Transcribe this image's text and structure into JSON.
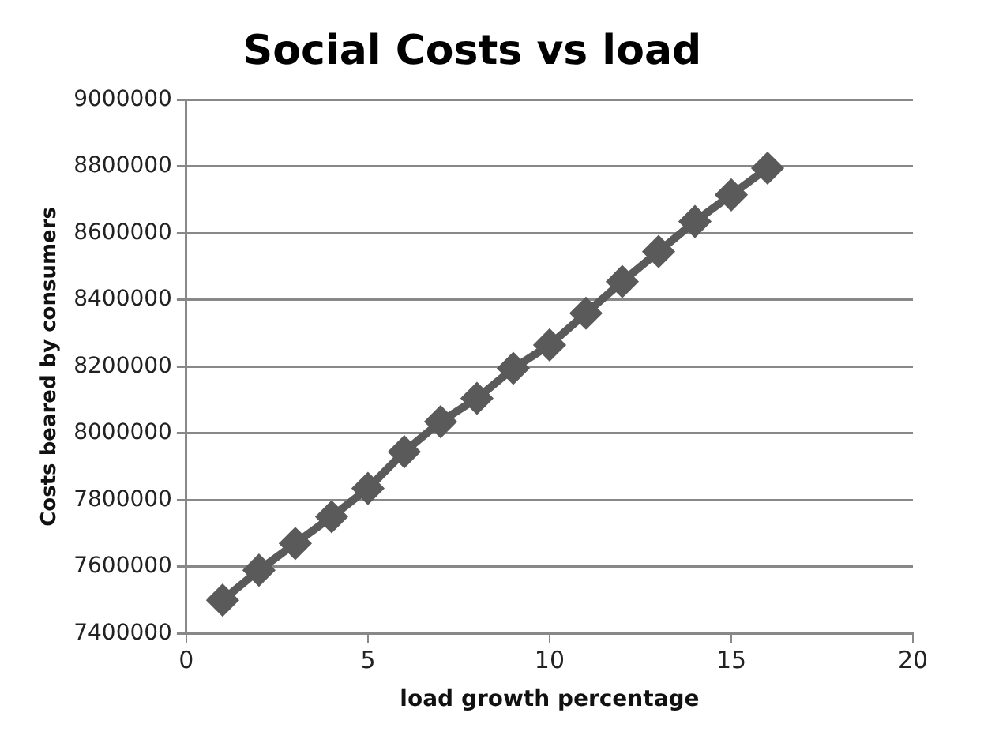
{
  "chart_data": {
    "type": "line",
    "title": "Social Costs vs load",
    "xlabel": "load growth percentage",
    "ylabel": "Costs beared by consumers",
    "x": [
      1,
      2,
      3,
      4,
      5,
      6,
      7,
      8,
      9,
      10,
      11,
      12,
      13,
      14,
      15,
      16
    ],
    "series": [
      {
        "color": "#5a5a5a",
        "values": [
          7500000,
          7590000,
          7670000,
          7750000,
          7835000,
          7945000,
          8035000,
          8105000,
          8195000,
          8265000,
          8360000,
          8455000,
          8545000,
          8635000,
          8715000,
          8795000
        ]
      }
    ],
    "xlim": [
      0,
      20
    ],
    "xticks": [
      0,
      5,
      10,
      15,
      20
    ],
    "ylim": [
      7400000,
      9000000
    ],
    "yticks": [
      7400000,
      7600000,
      7800000,
      8000000,
      8200000,
      8400000,
      8600000,
      8800000,
      9000000
    ],
    "grid": "y",
    "legend": false,
    "marker": "diamond",
    "line_style": "solid"
  }
}
